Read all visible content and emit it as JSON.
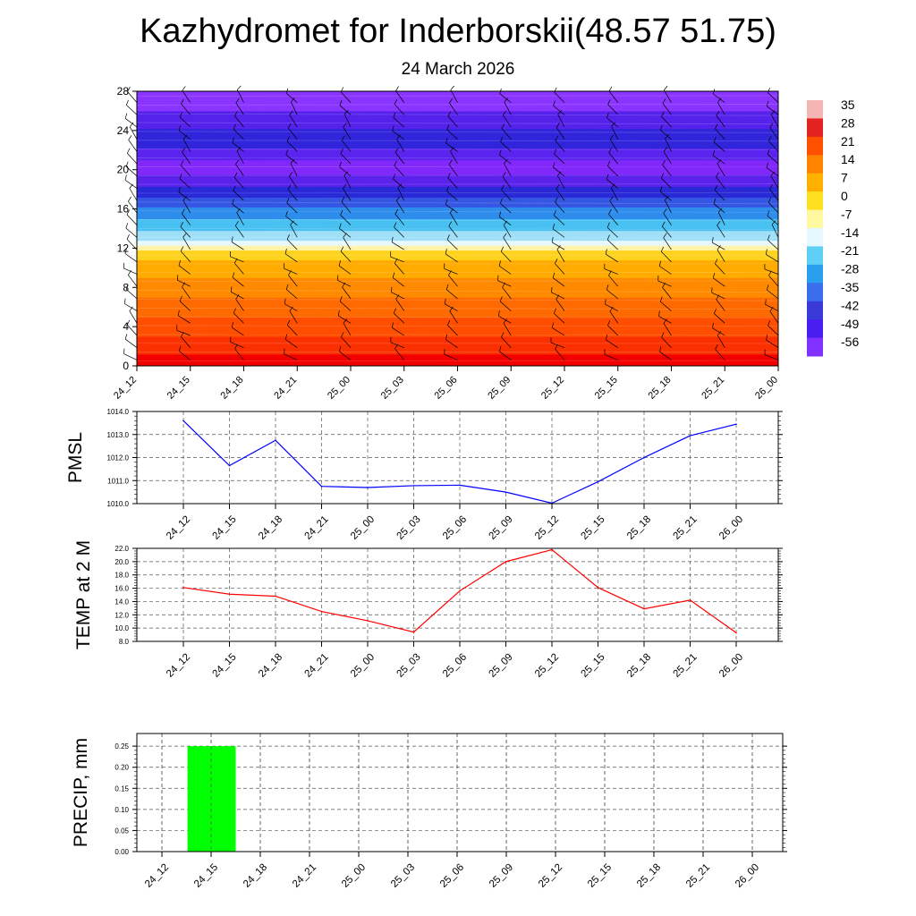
{
  "header": {
    "title": "Kazhydromet for Inderborskii(48.57 51.75)",
    "date": "24 March 2026"
  },
  "time_labels": [
    "24_12",
    "24_15",
    "24_18",
    "24_21",
    "25_00",
    "25_03",
    "25_06",
    "25_09",
    "25_12",
    "25_15",
    "25_18",
    "25_21",
    "26_00"
  ],
  "colorbar": {
    "labels": [
      "35",
      "28",
      "21",
      "14",
      "7",
      "0",
      "-7",
      "-14",
      "-21",
      "-28",
      "-35",
      "-42",
      "-49",
      "-56"
    ],
    "colors": [
      "#f5b5b5",
      "#e4221f",
      "#ff5000",
      "#ff8200",
      "#ffb000",
      "#ffe020",
      "#fff8a0",
      "#e6f8ff",
      "#60cff5",
      "#28a0ee",
      "#3a6eea",
      "#3a3ad8",
      "#4a1ef0",
      "#8030ff"
    ]
  },
  "chart_data": [
    {
      "type": "heatmap",
      "description_hint": "vertical cross-section: temperature shading with wind barbs",
      "x": [
        "24_12",
        "24_15",
        "24_18",
        "24_21",
        "25_00",
        "25_03",
        "25_06",
        "25_09",
        "25_12",
        "25_15",
        "25_18",
        "25_21",
        "26_00"
      ],
      "yticks": [
        "0",
        "4",
        "8",
        "12",
        "16",
        "20",
        "24",
        "28"
      ],
      "ylim": [
        0,
        28
      ],
      "bands": [
        {
          "from": 0,
          "to": 1.2,
          "color": "#f20000"
        },
        {
          "from": 1.2,
          "to": 3,
          "color": "#fb3000"
        },
        {
          "from": 3,
          "to": 5,
          "color": "#ff4e00"
        },
        {
          "from": 5,
          "to": 7,
          "color": "#ff6a00"
        },
        {
          "from": 7,
          "to": 9,
          "color": "#ff8a00"
        },
        {
          "from": 9,
          "to": 10.8,
          "color": "#ffab00"
        },
        {
          "from": 10.8,
          "to": 11.8,
          "color": "#ffd21e"
        },
        {
          "from": 11.8,
          "to": 12.3,
          "color": "#fff3a8"
        },
        {
          "from": 12.3,
          "to": 12.8,
          "color": "#e8f8ff"
        },
        {
          "from": 12.8,
          "to": 13.8,
          "color": "#9fe0f8"
        },
        {
          "from": 13.8,
          "to": 15,
          "color": "#48c0f2"
        },
        {
          "from": 15,
          "to": 16.2,
          "color": "#2d8cec"
        },
        {
          "from": 16.2,
          "to": 17.2,
          "color": "#3556e3"
        },
        {
          "from": 17.2,
          "to": 18.3,
          "color": "#2929d8"
        },
        {
          "from": 18.3,
          "to": 19.5,
          "color": "#5a22ea"
        },
        {
          "from": 19.5,
          "to": 21,
          "color": "#8228fb"
        },
        {
          "from": 21,
          "to": 22.2,
          "color": "#5a24ee"
        },
        {
          "from": 22.2,
          "to": 24.2,
          "color": "#3125dc"
        },
        {
          "from": 24.2,
          "to": 26,
          "color": "#5522ec"
        },
        {
          "from": 26,
          "to": 28,
          "color": "#8a34ff"
        }
      ]
    },
    {
      "type": "line",
      "ylabel": "PMSL",
      "x": [
        "24_12",
        "24_15",
        "24_18",
        "24_21",
        "25_00",
        "25_03",
        "25_06",
        "25_09",
        "25_12",
        "25_15",
        "25_18",
        "25_21",
        "26_00"
      ],
      "values": [
        1013.6,
        1011.65,
        1012.75,
        1010.75,
        1010.7,
        1010.78,
        1010.8,
        1010.5,
        1010.02,
        1010.95,
        1012.0,
        1012.95,
        1013.45
      ],
      "ylim": [
        1010.0,
        1014.0
      ],
      "yticks": [
        "1010.0",
        "1011.0",
        "1012.0",
        "1013.0",
        "1014.0"
      ],
      "color": "#0000ff"
    },
    {
      "type": "line",
      "ylabel": "TEMP at 2 M",
      "x": [
        "24_12",
        "24_15",
        "24_18",
        "24_21",
        "25_00",
        "25_03",
        "25_06",
        "25_09",
        "25_12",
        "25_15",
        "25_18",
        "25_21",
        "26_00"
      ],
      "values": [
        16.1,
        15.1,
        14.8,
        12.5,
        11.1,
        9.4,
        15.6,
        20.0,
        21.8,
        16.1,
        12.9,
        14.2,
        9.3
      ],
      "ylim": [
        8.0,
        22.0
      ],
      "yticks": [
        "8.0",
        "10.0",
        "12.0",
        "14.0",
        "16.0",
        "18.0",
        "20.0",
        "22.0"
      ],
      "color": "#ff0000"
    },
    {
      "type": "bar",
      "ylabel": "PRECIP, mm",
      "x": [
        "24_12",
        "24_15",
        "24_18",
        "24_21",
        "25_00",
        "25_03",
        "25_06",
        "25_09",
        "25_12",
        "25_15",
        "25_18",
        "25_21",
        "26_00"
      ],
      "values": [
        0,
        0.25,
        0,
        0,
        0,
        0,
        0,
        0,
        0,
        0,
        0,
        0,
        0
      ],
      "ylim": [
        0,
        0.28
      ],
      "yticks": [
        "0.00",
        "0.05",
        "0.10",
        "0.15",
        "0.20",
        "0.25"
      ],
      "color": "#00ff00"
    }
  ]
}
